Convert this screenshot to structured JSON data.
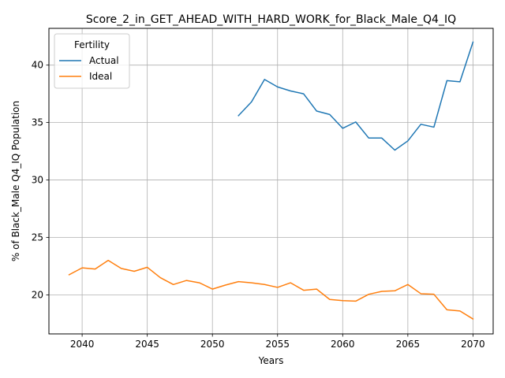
{
  "chart_data": {
    "type": "line",
    "title": "Score_2_in_GET_AHEAD_WITH_HARD_WORK_for_Black_Male_Q4_IQ",
    "xlabel": "Years",
    "ylabel": "% of Black_Male Q4_IQ Population",
    "xlim": [
      2037.45,
      2071.55
    ],
    "ylim": [
      16.6,
      43.2
    ],
    "xticks": [
      2040,
      2045,
      2050,
      2055,
      2060,
      2065,
      2070
    ],
    "yticks": [
      20,
      25,
      30,
      35,
      40
    ],
    "grid": true,
    "legend": {
      "title": "Fertility",
      "position": "top-left"
    },
    "series": [
      {
        "name": "Actual",
        "color": "#1f77b4",
        "x": [
          2052,
          2053,
          2054,
          2055,
          2056,
          2057,
          2058,
          2059,
          2060,
          2061,
          2062,
          2063,
          2064,
          2065,
          2066,
          2067,
          2068,
          2069,
          2070
        ],
        "values": [
          35.6,
          36.8,
          38.75,
          38.1,
          37.75,
          37.5,
          36.0,
          35.7,
          34.5,
          35.05,
          33.65,
          33.65,
          32.6,
          33.4,
          34.85,
          34.6,
          38.65,
          38.55,
          42.0
        ]
      },
      {
        "name": "Ideal",
        "color": "#ff7f0e",
        "x": [
          2039,
          2040,
          2041,
          2042,
          2043,
          2044,
          2045,
          2046,
          2047,
          2048,
          2049,
          2050,
          2051,
          2052,
          2053,
          2054,
          2055,
          2056,
          2057,
          2058,
          2059,
          2060,
          2061,
          2062,
          2063,
          2064,
          2065,
          2066,
          2067,
          2068,
          2069,
          2070
        ],
        "values": [
          21.75,
          22.35,
          22.25,
          23.0,
          22.3,
          22.05,
          22.4,
          21.5,
          20.9,
          21.25,
          21.05,
          20.5,
          20.85,
          21.15,
          21.05,
          20.9,
          20.65,
          21.05,
          20.4,
          20.5,
          19.6,
          19.5,
          19.45,
          20.05,
          20.3,
          20.35,
          20.9,
          20.1,
          20.05,
          18.7,
          18.6,
          17.9
        ]
      }
    ]
  }
}
